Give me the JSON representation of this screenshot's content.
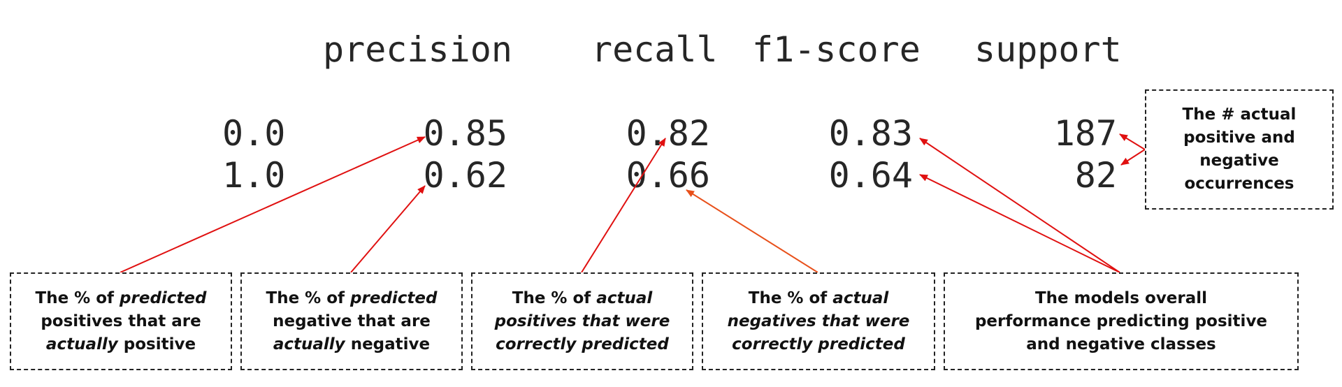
{
  "headers": {
    "precision": "precision",
    "recall": "recall",
    "f1": "f1-score",
    "support": "support"
  },
  "rows": [
    {
      "label": "0.0",
      "precision": "0.85",
      "recall": "0.82",
      "f1": "0.83",
      "support": "187"
    },
    {
      "label": "1.0",
      "precision": "0.62",
      "recall": "0.66",
      "f1": "0.64",
      "support": "82"
    }
  ],
  "annotations": {
    "support_note": {
      "line1": "The # actual",
      "line2": "positive and",
      "line3": "negative",
      "line4": "occurrences"
    },
    "precision_pos": {
      "a": "The % of ",
      "b": "predicted",
      "c": "positives that are",
      "d": "actually",
      "e": " positive"
    },
    "precision_neg": {
      "a": "The % of ",
      "b": "predicted",
      "c": "negative that are",
      "d": "actually",
      "e": " negative"
    },
    "recall_pos": {
      "a": "The % of ",
      "b": "actual",
      "c": "positives that were",
      "d": "correctly predicted"
    },
    "recall_neg": {
      "a": "The % of ",
      "b": "actual",
      "c": "negatives that were",
      "d": "correctly predicted"
    },
    "f1_note": {
      "line1": "The models overall",
      "line2": "performance predicting positive",
      "line3": "and negative classes"
    }
  },
  "colors": {
    "arrow_red": "#e01010",
    "arrow_orange": "#e8501a",
    "text": "#262626"
  }
}
